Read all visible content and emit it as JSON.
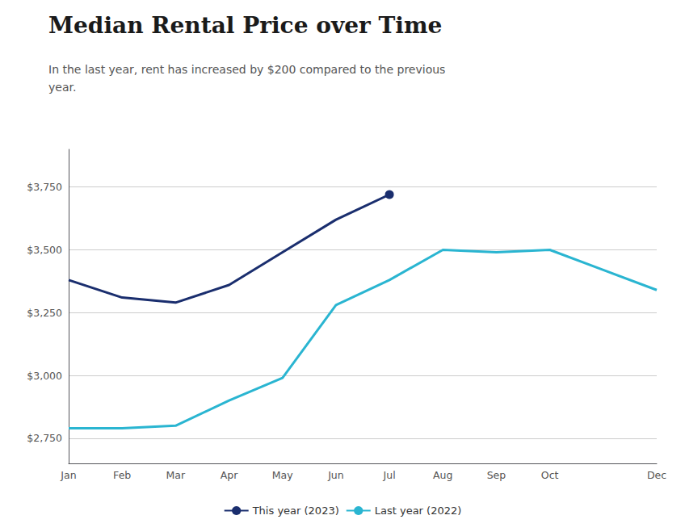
{
  "chart_data": {
    "type": "line",
    "title": "Median Rental Price over Time",
    "subtitle": "In the last year, rent has increased by $200 compared to the previous year.",
    "categories": [
      "Jan",
      "Feb",
      "Mar",
      "Apr",
      "May",
      "Jun",
      "Jul",
      "Aug",
      "Sep",
      "Oct",
      null,
      "Dec"
    ],
    "series": [
      {
        "name": "This year (2023)",
        "color": "#1a2e6e",
        "marker": "circle",
        "values": [
          3380,
          3310,
          3290,
          3360,
          3490,
          3620,
          3720,
          null,
          null,
          null,
          null,
          null
        ]
      },
      {
        "name": "Last year (2022)",
        "color": "#2ab5d1",
        "values": [
          2790,
          2790,
          2800,
          2900,
          2990,
          3280,
          3380,
          3500,
          3490,
          3500,
          3420,
          3340
        ]
      }
    ],
    "ylim": [
      2650,
      3900
    ],
    "yticks": [
      {
        "value": 2750,
        "label": "$2,750"
      },
      {
        "value": 3000,
        "label": "$3,000"
      },
      {
        "value": 3250,
        "label": "$3,250"
      },
      {
        "value": 3500,
        "label": "$3,500"
      },
      {
        "value": 3750,
        "label": "$3,750"
      }
    ],
    "grid": true,
    "legend": "bottom"
  }
}
